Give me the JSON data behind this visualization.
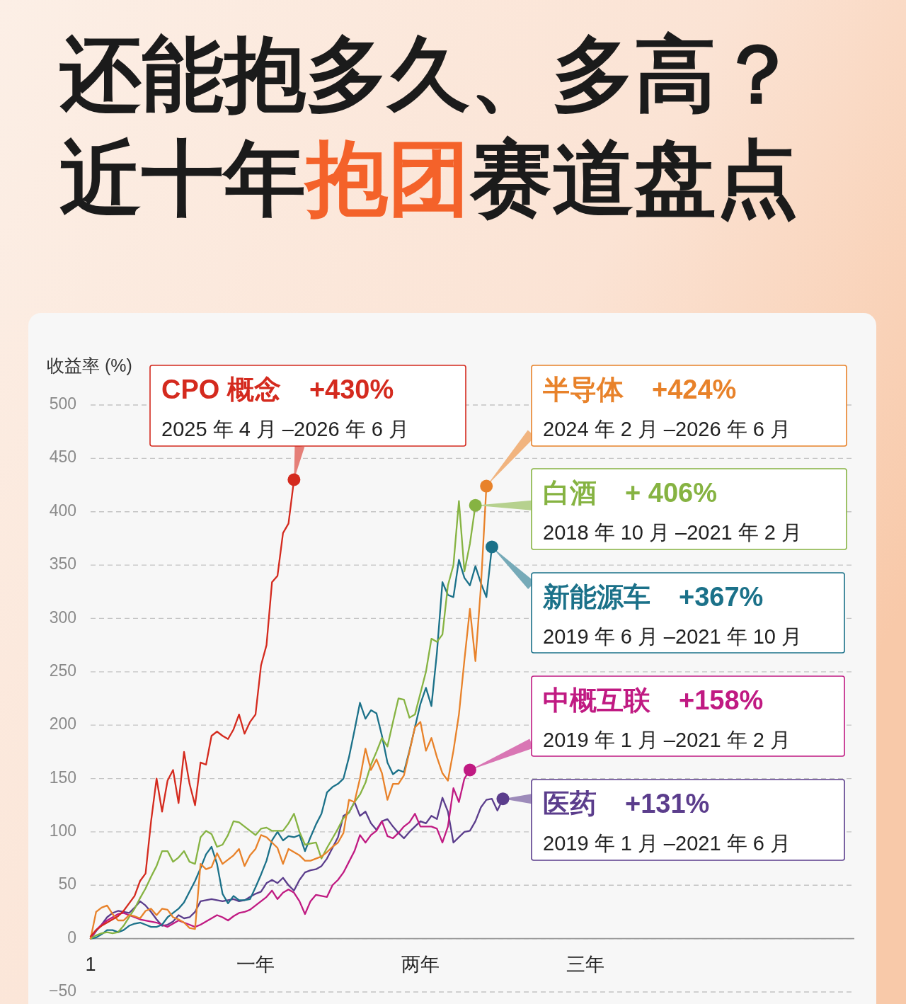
{
  "chart_data": {
    "type": "line",
    "title": "还能抱多久、多高？",
    "subtitle": "近十年抱团赛道盘点",
    "ylabel": "收益率 (%)",
    "categories": [
      "1",
      null,
      null,
      null,
      null,
      null,
      null,
      null,
      null,
      null,
      null,
      null,
      null,
      null,
      null,
      null,
      null,
      null,
      null,
      null,
      null,
      null,
      null,
      null,
      null,
      null,
      null,
      null,
      null,
      null,
      "一年",
      null,
      null,
      null,
      null,
      null,
      null,
      null,
      null,
      null,
      null,
      null,
      null,
      null,
      null,
      null,
      null,
      null,
      null,
      null,
      null,
      null,
      null,
      null,
      null,
      null,
      null,
      null,
      null,
      null,
      "两年",
      null,
      null,
      null,
      null,
      null,
      null,
      null,
      null,
      null,
      null,
      null,
      null,
      null,
      null,
      null,
      null,
      null,
      null,
      null,
      null,
      null,
      null,
      null,
      null,
      null,
      null,
      null,
      null,
      null,
      "三年"
    ],
    "ylim": [
      -50,
      500
    ],
    "yticks": [
      {
        "value": -50,
        "label": "−50"
      },
      0,
      50,
      100,
      150,
      200,
      250,
      300,
      350,
      400,
      450,
      500
    ],
    "grid": "y",
    "line_style": "solid",
    "legend": "right",
    "series": [
      {
        "name": "CPO 概念",
        "color": "#d42a1e",
        "values": [
          2,
          8,
          12,
          15,
          18,
          21,
          26,
          33,
          40,
          54,
          61,
          110,
          150,
          119,
          148,
          158,
          127,
          175,
          145,
          125,
          165,
          163,
          190,
          194,
          190,
          187,
          196,
          210,
          192,
          203,
          210,
          256,
          275,
          334,
          340,
          380,
          389,
          430,
          null,
          null,
          null,
          null,
          null,
          null,
          null,
          null,
          null,
          null,
          null,
          null,
          null,
          null,
          null,
          null,
          null,
          null,
          null,
          null,
          null,
          null,
          null,
          null,
          null,
          null,
          null,
          null,
          null,
          null,
          null,
          null,
          null,
          null,
          null,
          null,
          null,
          null,
          null,
          null,
          null,
          null,
          null,
          null,
          null,
          null,
          null,
          null,
          null,
          null,
          null,
          null,
          null
        ]
      },
      {
        "name": "半导体",
        "color": "#e8822a",
        "values": [
          0,
          25,
          29,
          31,
          23,
          17,
          17,
          22,
          21,
          19,
          26,
          28,
          22,
          28,
          27,
          20,
          18,
          15,
          10,
          9,
          70,
          65,
          67,
          80,
          70,
          74,
          78,
          84,
          68,
          78,
          84,
          97,
          95,
          90,
          85,
          70,
          84,
          81,
          78,
          73,
          73,
          75,
          77,
          81,
          86,
          90,
          99,
          130,
          128,
          150,
          178,
          158,
          168,
          155,
          130,
          145,
          145,
          153,
          175,
          198,
          203,
          176,
          188,
          170,
          155,
          148,
          176,
          210,
          261,
          309,
          260,
          330,
          424,
          null,
          null,
          null,
          null,
          null,
          null,
          null,
          null,
          null,
          null,
          null,
          null,
          null,
          null,
          null,
          null,
          null,
          null
        ]
      },
      {
        "name": "白酒",
        "color": "#86b342",
        "values": [
          0,
          3,
          5,
          6,
          5,
          6,
          12,
          20,
          28,
          38,
          47,
          58,
          68,
          82,
          82,
          72,
          76,
          82,
          72,
          70,
          95,
          101,
          98,
          86,
          88,
          97,
          110,
          109,
          105,
          101,
          97,
          103,
          104,
          101,
          101,
          101,
          108,
          117,
          100,
          88,
          89,
          90,
          75,
          85,
          94,
          103,
          113,
          118,
          128,
          135,
          146,
          163,
          175,
          188,
          180,
          203,
          225,
          224,
          207,
          210,
          230,
          250,
          281,
          278,
          285,
          331,
          350,
          410,
          344,
          370,
          406,
          null,
          null,
          null,
          null,
          null,
          null,
          null,
          null,
          null,
          null,
          null,
          null,
          null,
          null,
          null,
          null,
          null,
          null,
          null,
          null
        ]
      },
      {
        "name": "新能源车",
        "color": "#1b7189",
        "values": [
          0,
          1,
          4,
          8,
          8,
          6,
          8,
          12,
          14,
          15,
          13,
          11,
          11,
          13,
          20,
          24,
          28,
          34,
          44,
          54,
          66,
          79,
          86,
          70,
          42,
          33,
          40,
          36,
          36,
          37,
          48,
          60,
          73,
          92,
          100,
          92,
          96,
          95,
          97,
          82,
          95,
          107,
          117,
          137,
          142,
          145,
          150,
          170,
          195,
          221,
          206,
          214,
          211,
          190,
          165,
          154,
          158,
          156,
          176,
          198,
          220,
          235,
          218,
          268,
          334,
          322,
          320,
          355,
          338,
          331,
          349,
          333,
          320,
          367,
          null,
          null,
          null,
          null,
          null,
          null,
          null,
          null,
          null,
          null,
          null,
          null,
          null,
          null,
          null,
          null,
          null
        ]
      },
      {
        "name": "中概互联",
        "color": "#c01a82",
        "values": [
          0,
          8,
          13,
          17,
          20,
          23,
          24,
          22,
          20,
          18,
          17,
          16,
          15,
          13,
          11,
          14,
          17,
          15,
          13,
          11,
          13,
          16,
          19,
          22,
          20,
          17,
          21,
          24,
          25,
          27,
          31,
          35,
          39,
          45,
          37,
          43,
          46,
          43,
          35,
          23,
          35,
          41,
          40,
          39,
          50,
          55,
          62,
          72,
          82,
          97,
          90,
          97,
          101,
          110,
          96,
          94,
          99,
          105,
          109,
          117,
          105,
          105,
          105,
          103,
          90,
          105,
          141,
          128,
          150,
          158,
          null,
          null,
          null,
          null,
          null,
          null,
          null,
          null,
          null,
          null,
          null,
          null,
          null,
          null,
          null,
          null,
          null,
          null,
          null,
          null,
          null
        ]
      },
      {
        "name": "医药",
        "color": "#5b3d8c",
        "values": [
          0,
          7,
          13,
          20,
          24,
          26,
          25,
          24,
          29,
          35,
          31,
          25,
          18,
          12,
          13,
          16,
          22,
          19,
          20,
          25,
          35,
          36,
          37,
          36,
          35,
          36,
          37,
          35,
          36,
          39,
          42,
          44,
          52,
          55,
          52,
          57,
          50,
          45,
          55,
          62,
          64,
          65,
          68,
          75,
          85,
          95,
          115,
          118,
          128,
          115,
          119,
          108,
          102,
          110,
          112,
          105,
          99,
          94,
          100,
          105,
          110,
          108,
          115,
          112,
          132,
          119,
          90,
          95,
          100,
          101,
          110,
          123,
          130,
          131,
          120,
          131,
          null,
          null,
          null,
          null,
          null,
          null,
          null,
          null,
          null,
          null,
          null,
          null,
          null,
          null,
          null
        ]
      }
    ],
    "annotations": [
      "+430%",
      "2025 年 4 月 –2026 年 6 月",
      "+424%",
      "2024 年 2 月 –2026 年 6 月",
      "+ 406%",
      "2018 年 10 月 –2021 年 2 月",
      "+367%",
      "2019 年 6 月 –2021 年 10 月",
      "+158%",
      "2019 年 1 月 –2021 年 2 月",
      "+131%",
      "2019 年 1 月 –2021 年 6 月"
    ]
  }
}
